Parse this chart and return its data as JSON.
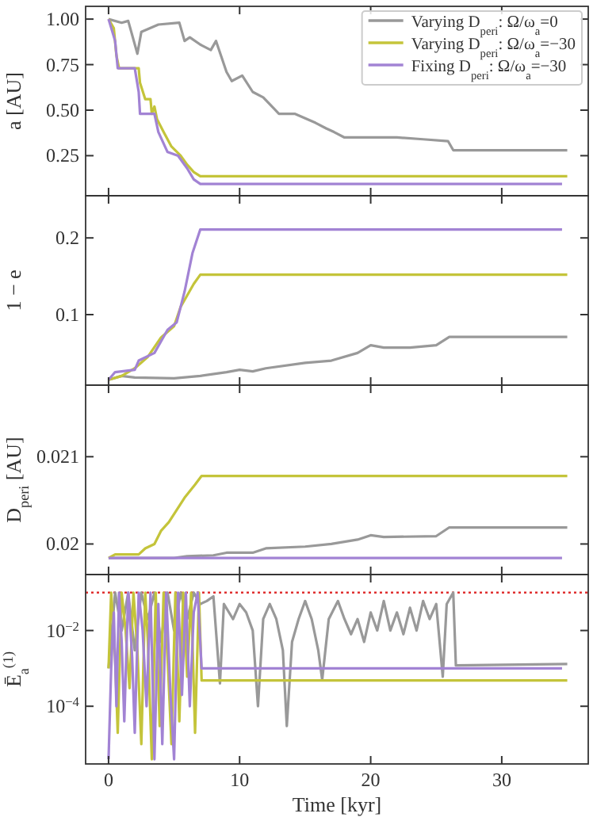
{
  "chart_data": [
    {
      "type": "line",
      "ylabel": "a [AU]",
      "xlim": [
        -1.75,
        36.6
      ],
      "xticks": [
        0,
        10,
        20,
        30
      ],
      "ylim": [
        0.03,
        1.07
      ],
      "yticks": [
        {
          "value": 0.25,
          "label": "0.25"
        },
        {
          "value": 0.5,
          "label": "0.50"
        },
        {
          "value": 0.75,
          "label": "0.75"
        },
        {
          "value": 1,
          "label": "1.00"
        }
      ],
      "tick_labels": "y",
      "legend": "top right",
      "series": [
        {
          "name": "Varying D$_{peri}$: Ω/ω$_{a}$=0",
          "color": "#999999",
          "x": [
            0,
            1,
            1.5,
            2.2,
            2.5,
            3.8,
            5.4,
            5.8,
            6.2,
            7,
            7.8,
            8.2,
            9,
            9.4,
            10.2,
            11,
            11.8,
            12.6,
            13,
            14.2,
            15.8,
            16.6,
            17.2,
            18,
            20,
            22,
            24,
            25.9,
            26.3,
            35
          ],
          "values": [
            1.0,
            0.98,
            0.99,
            0.81,
            0.93,
            0.97,
            0.98,
            0.88,
            0.9,
            0.86,
            0.83,
            0.88,
            0.71,
            0.66,
            0.69,
            0.6,
            0.57,
            0.51,
            0.48,
            0.48,
            0.43,
            0.4,
            0.38,
            0.35,
            0.35,
            0.35,
            0.34,
            0.33,
            0.28,
            0.28
          ]
        },
        {
          "name": "Varying D$_{peri}$: Ω/ω$_{a}$=−30",
          "color": "#c4c43a",
          "x": [
            0,
            0.4,
            0.6,
            0.8,
            2.3,
            2.4,
            2.8,
            3.2,
            3.3,
            3.5,
            3.7,
            4.2,
            4.8,
            5.5,
            6.0,
            6.5,
            7.0,
            35
          ],
          "values": [
            1.0,
            0.95,
            0.8,
            0.73,
            0.73,
            0.65,
            0.56,
            0.56,
            0.48,
            0.52,
            0.45,
            0.38,
            0.3,
            0.25,
            0.2,
            0.16,
            0.137,
            0.137
          ]
        },
        {
          "name": "Fixing D$_{peri}$: Ω/ω$_{a}$=−30",
          "color": "#a283d4",
          "x": [
            0,
            0.5,
            0.7,
            2.0,
            2.3,
            2.4,
            3.5,
            3.8,
            4.5,
            5.3,
            6.0,
            6.5,
            7.0,
            34.6
          ],
          "values": [
            1.0,
            0.88,
            0.73,
            0.73,
            0.6,
            0.48,
            0.48,
            0.38,
            0.27,
            0.25,
            0.18,
            0.12,
            0.095,
            0.095
          ]
        }
      ]
    },
    {
      "type": "line",
      "ylabel": "1 − e",
      "xlim": [
        -1.75,
        36.6
      ],
      "xticks": [
        0,
        10,
        20,
        30
      ],
      "ylim": [
        0.008,
        0.255
      ],
      "yticks": [
        0.1,
        0.2
      ],
      "tick_labels": "y",
      "series": [
        {
          "color": "#999999",
          "x": [
            0,
            1,
            2,
            5,
            7,
            9,
            10,
            11,
            12,
            15,
            17,
            19,
            20,
            21,
            23,
            25,
            26,
            35
          ],
          "values": [
            0.015,
            0.02,
            0.018,
            0.017,
            0.02,
            0.025,
            0.028,
            0.026,
            0.03,
            0.037,
            0.04,
            0.05,
            0.06,
            0.057,
            0.057,
            0.06,
            0.071,
            0.071
          ]
        },
        {
          "color": "#c4c43a",
          "x": [
            0,
            1,
            2,
            3,
            4,
            5,
            5.5,
            6.5,
            7,
            35
          ],
          "values": [
            0.015,
            0.02,
            0.03,
            0.045,
            0.07,
            0.085,
            0.11,
            0.14,
            0.152,
            0.152
          ]
        },
        {
          "color": "#a283d4",
          "x": [
            0,
            0.5,
            2,
            2.3,
            3.5,
            4.5,
            5.2,
            5.8,
            6.4,
            7,
            34.6
          ],
          "values": [
            0.015,
            0.025,
            0.028,
            0.04,
            0.05,
            0.08,
            0.09,
            0.13,
            0.18,
            0.211,
            0.211
          ]
        }
      ]
    },
    {
      "type": "line",
      "ylabel": "D$_{peri}$ [AU]",
      "xlim": [
        -1.75,
        36.6
      ],
      "xticks": [
        0,
        10,
        20,
        30
      ],
      "ylim": [
        0.01965,
        0.02182
      ],
      "yticks": [
        0.02,
        0.021
      ],
      "tick_labels": "y",
      "series": [
        {
          "color": "#999999",
          "x": [
            0,
            5,
            6,
            8,
            9,
            11,
            12,
            15,
            17,
            19,
            20,
            21,
            25,
            26,
            35
          ],
          "values": [
            0.01984,
            0.01984,
            0.01986,
            0.01987,
            0.0199,
            0.0199,
            0.01995,
            0.01997,
            0.02,
            0.02005,
            0.0201,
            0.02008,
            0.02009,
            0.02019,
            0.02019
          ]
        },
        {
          "color": "#c4c43a",
          "x": [
            0,
            0.5,
            2.3,
            2.8,
            3.5,
            4.0,
            4.6,
            5.8,
            6.6,
            7.1,
            35
          ],
          "values": [
            0.01984,
            0.01988,
            0.01988,
            0.01995,
            0.02,
            0.02015,
            0.02025,
            0.02053,
            0.02068,
            0.02078,
            0.02078
          ]
        },
        {
          "color": "#a283d4",
          "x": [
            0,
            34.6
          ],
          "values": [
            0.01984,
            0.01984
          ]
        }
      ]
    },
    {
      "type": "line",
      "ylabel": "Ē$_{a}$$^{(1)}$",
      "xlabel": "Time [kyr]",
      "xlim": [
        -1.75,
        36.6
      ],
      "xticks": [
        0,
        10,
        20,
        30
      ],
      "ylim": [
        3e-06,
        0.3
      ],
      "yticks": [
        {
          "value": 0.01,
          "label": "10$^{−2}$"
        },
        {
          "value": 0.0001,
          "label": "10$^{−4}$"
        }
      ],
      "log": "y",
      "ref_lines": [
        {
          "axis": "y",
          "value": 0.1,
          "color": "#e03030",
          "line_style": "dotted"
        }
      ],
      "series": [
        {
          "color": "#999999",
          "x": [
            0,
            0.5,
            1,
            1.5,
            2,
            2.5,
            3,
            3.5,
            4,
            4.5,
            5,
            5.5,
            6,
            6.5,
            7,
            7.5,
            8,
            8.5,
            8.8,
            9.5,
            10,
            10.5,
            11,
            11.4,
            11.8,
            12.3,
            12.8,
            13.3,
            13.6,
            14,
            14.5,
            15,
            15.5,
            16,
            16.3,
            16.8,
            17.5,
            18,
            18.5,
            19,
            19.5,
            20,
            20.5,
            21,
            21.5,
            22,
            22.5,
            23,
            23.5,
            24,
            24.5,
            25,
            25.5,
            25.8,
            26.3,
            26.5,
            35
          ],
          "values": [
            0.001,
            0.1,
            0.01,
            0.1,
            0.003,
            0.1,
            0.02,
            0.1,
            0.005,
            0.1,
            0.01,
            0.1,
            0.02,
            0.1,
            0.05,
            0.06,
            0.08,
            0.0004,
            0.05,
            0.02,
            0.05,
            0.03,
            0.01,
            0.0001,
            0.02,
            0.05,
            0.02,
            0.003,
            3e-05,
            0.005,
            0.02,
            0.06,
            0.02,
            0.003,
            0.0005,
            0.02,
            0.06,
            0.02,
            0.008,
            0.02,
            0.005,
            0.03,
            0.01,
            0.06,
            0.01,
            0.03,
            0.008,
            0.04,
            0.01,
            0.06,
            0.02,
            0.05,
            0.0006,
            0.05,
            0.1,
            0.0012,
            0.0013
          ]
        },
        {
          "color": "#c4c43a",
          "x": [
            0,
            0.2,
            0.5,
            0.7,
            1.0,
            1.3,
            1.6,
            1.9,
            2.2,
            2.5,
            2.8,
            3.0,
            3.3,
            3.6,
            3.9,
            4.2,
            4.5,
            4.8,
            5.1,
            5.4,
            5.7,
            6.0,
            6.3,
            6.6,
            6.9,
            7.1,
            35
          ],
          "values": [
            0.001,
            0.1,
            0.002,
            2e-05,
            0.1,
            0.01,
            0.0003,
            0.1,
            0.003,
            1e-05,
            0.1,
            0.005,
            4e-06,
            0.1,
            3e-05,
            0.1,
            0.002,
            1e-05,
            0.1,
            4e-05,
            0.1,
            0.0006,
            0.1,
            2e-05,
            0.1,
            0.00048,
            0.00048
          ]
        },
        {
          "color": "#a283d4",
          "x": [
            0,
            0.2,
            0.4,
            0.6,
            0.8,
            1.0,
            1.2,
            1.5,
            1.8,
            2.0,
            2.3,
            2.6,
            2.9,
            3.2,
            3.5,
            3.8,
            4.1,
            4.4,
            4.7,
            5.0,
            5.3,
            5.6,
            5.9,
            6.2,
            6.5,
            6.8,
            7.1,
            34.6
          ],
          "values": [
            4e-06,
            0.001,
            0.03,
            0.0001,
            0.1,
            0.005,
            4e-05,
            0.1,
            0.002,
            2e-05,
            0.1,
            0.01,
            0.0001,
            0.1,
            4e-06,
            0.05,
            1e-05,
            0.1,
            0.0003,
            4e-06,
            0.1,
            0.0002,
            0.1,
            0.0001,
            0.03,
            0.1,
            0.001,
            0.001
          ]
        }
      ]
    }
  ]
}
